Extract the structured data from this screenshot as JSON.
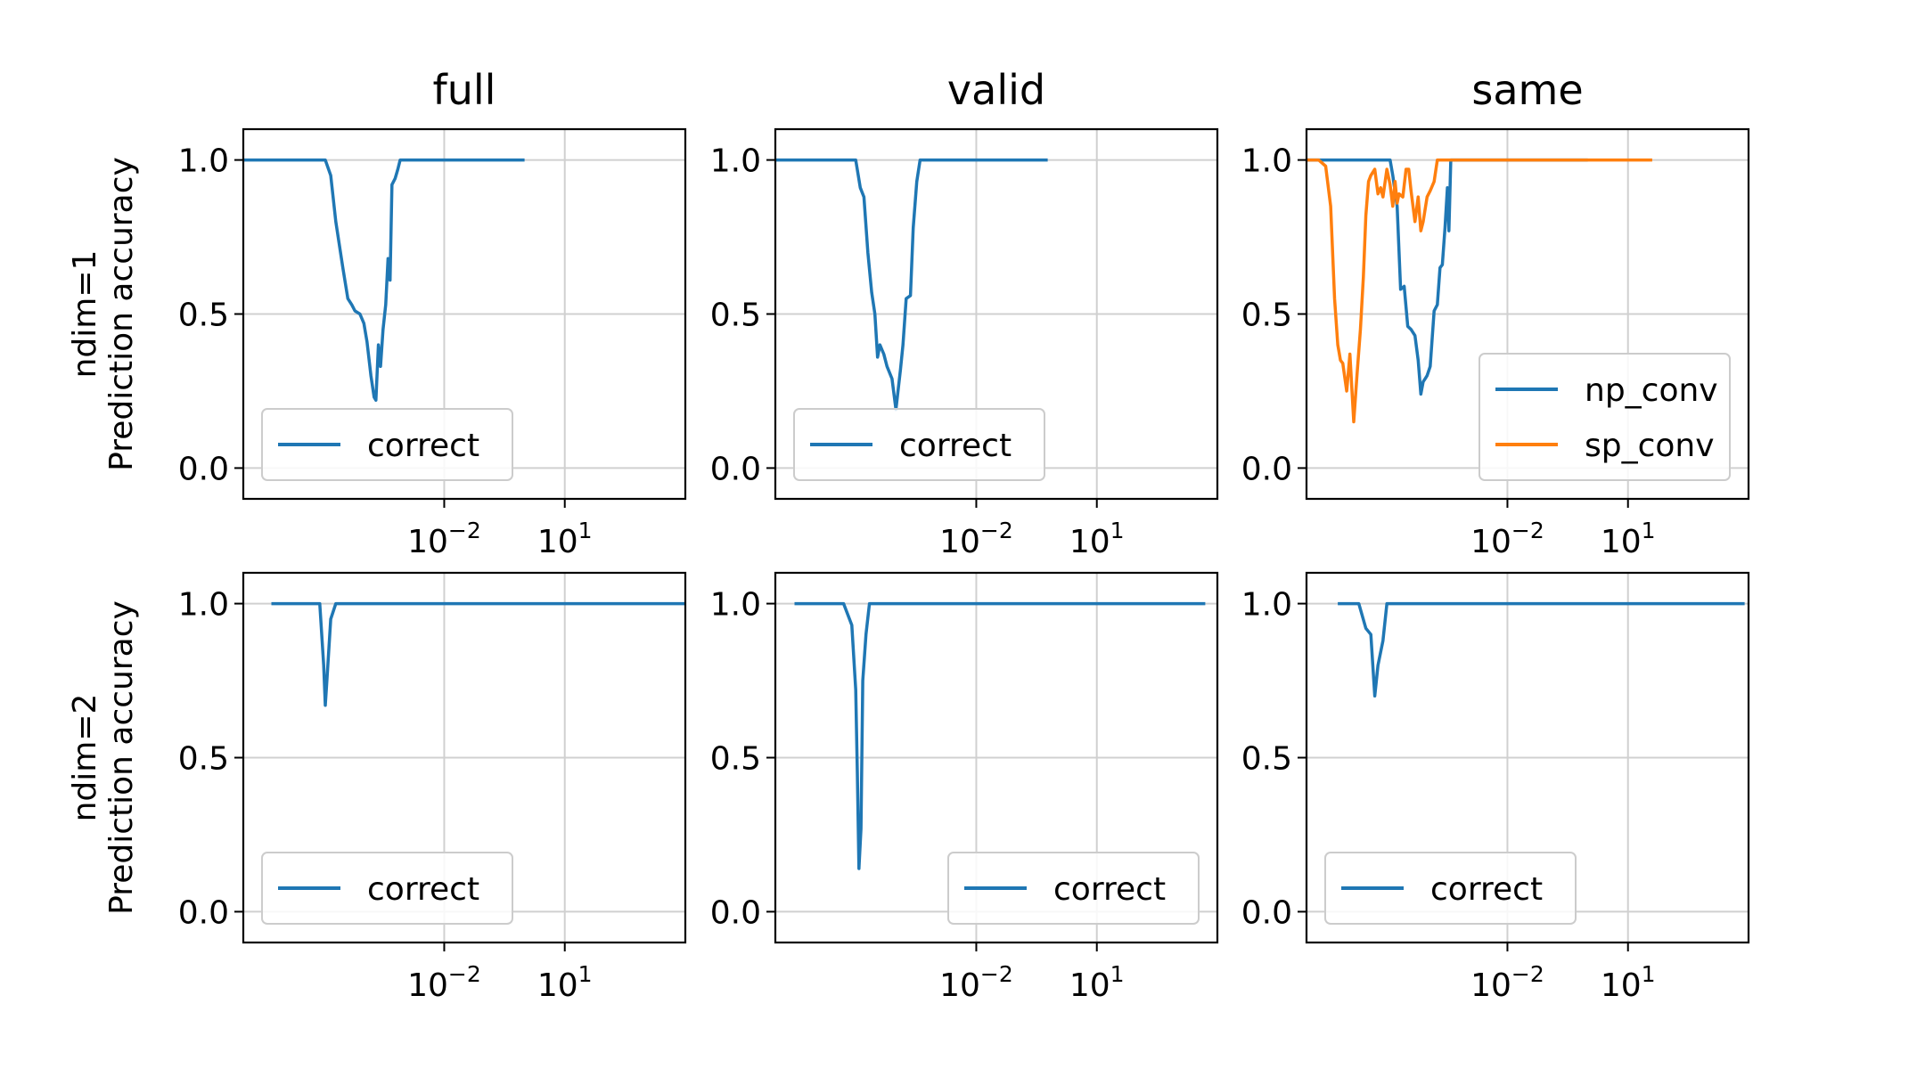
{
  "figure": {
    "column_titles": [
      "full",
      "valid",
      "same"
    ],
    "row_labels": [
      {
        "line1": "ndim=1",
        "line2": "Prediction accuracy"
      },
      {
        "line1": "ndim=2",
        "line2": "Prediction accuracy"
      }
    ]
  },
  "colors": {
    "blue": "#1f77b4",
    "orange": "#ff7f0e",
    "grid": "#d0d0d0"
  },
  "chart_data": [
    {
      "type": "line",
      "row": 0,
      "col": 0,
      "title": "full",
      "ylabel": "ndim=1 / Prediction accuracy",
      "xscale": "log",
      "xlim": [
        1e-07,
        10000.0
      ],
      "ylim": [
        -0.1,
        1.1
      ],
      "xticks": [
        {
          "value": 0.01,
          "base": "10",
          "exp": "−2"
        },
        {
          "value": 10,
          "base": "10",
          "exp": "1"
        }
      ],
      "yticks": [
        {
          "value": 0,
          "label": "0.0"
        },
        {
          "value": 0.5,
          "label": "0.5"
        },
        {
          "value": 1,
          "label": "1.0"
        }
      ],
      "legend": "lower-left",
      "series": [
        {
          "name": "correct",
          "color": "#1f77b4",
          "x": [
            1e-07,
            1e-06,
            1.1e-05,
            1.5e-05,
            2e-05,
            3e-05,
            4e-05,
            5e-05,
            6e-05,
            8e-05,
            0.0001,
            0.00012,
            0.00015,
            0.00018,
            0.0002,
            0.00023,
            0.00026,
            0.0003,
            0.00035,
            0.0004,
            0.00045,
            0.0005,
            0.0006,
            0.0007,
            0.0008,
            0.001,
            0.0012,
            0.0015,
            0.003,
            0.01,
            0.1,
            1
          ],
          "y": [
            1,
            1,
            1,
            0.95,
            0.8,
            0.65,
            0.55,
            0.53,
            0.51,
            0.5,
            0.47,
            0.41,
            0.3,
            0.23,
            0.22,
            0.4,
            0.33,
            0.45,
            0.53,
            0.68,
            0.61,
            0.92,
            0.94,
            0.97,
            1,
            1,
            1,
            1,
            1,
            1,
            1,
            1
          ]
        }
      ]
    },
    {
      "type": "line",
      "row": 0,
      "col": 1,
      "title": "valid",
      "ylabel": "",
      "xscale": "log",
      "xlim": [
        1e-07,
        10000.0
      ],
      "ylim": [
        -0.1,
        1.1
      ],
      "xticks": [
        {
          "value": 0.01,
          "base": "10",
          "exp": "−2"
        },
        {
          "value": 10,
          "base": "10",
          "exp": "1"
        }
      ],
      "yticks": [
        {
          "value": 0,
          "label": "0.0"
        },
        {
          "value": 0.5,
          "label": "0.5"
        },
        {
          "value": 1,
          "label": "1.0"
        }
      ],
      "legend": "lower-left",
      "series": [
        {
          "name": "correct",
          "color": "#1f77b4",
          "x": [
            1e-07,
            1e-06,
            5e-06,
            1e-05,
            1.3e-05,
            1.6e-05,
            2e-05,
            2.5e-05,
            3e-05,
            3.5e-05,
            4e-05,
            5e-05,
            6e-05,
            8e-05,
            0.0001,
            0.00013,
            0.00015,
            0.00018,
            0.00023,
            0.00027,
            0.00033,
            0.0004,
            0.0005,
            0.0006,
            0.0007,
            0.001,
            0.01,
            0.1,
            0.6
          ],
          "y": [
            1,
            1,
            1,
            1,
            0.91,
            0.88,
            0.7,
            0.57,
            0.5,
            0.36,
            0.4,
            0.37,
            0.33,
            0.29,
            0.19,
            0.32,
            0.4,
            0.55,
            0.56,
            0.78,
            0.93,
            1,
            1,
            1,
            1,
            1,
            1,
            1,
            1
          ]
        }
      ]
    },
    {
      "type": "line",
      "row": 0,
      "col": 2,
      "title": "same",
      "ylabel": "",
      "xscale": "log",
      "xlim": [
        1e-07,
        10000.0
      ],
      "ylim": [
        -0.1,
        1.1
      ],
      "xticks": [
        {
          "value": 0.01,
          "base": "10",
          "exp": "−2"
        },
        {
          "value": 10,
          "base": "10",
          "exp": "1"
        }
      ],
      "yticks": [
        {
          "value": 0,
          "label": "0.0"
        },
        {
          "value": 0.5,
          "label": "0.5"
        },
        {
          "value": 1,
          "label": "1.0"
        }
      ],
      "legend": "lower-right",
      "series": [
        {
          "name": "np_conv",
          "color": "#1f77b4",
          "x": [
            1e-07,
            1e-06,
            1e-05,
            1.2e-05,
            1.4e-05,
            1.8e-05,
            2.2e-05,
            2.7e-05,
            3.3e-05,
            4e-05,
            5e-05,
            6e-05,
            7e-05,
            8e-05,
            9e-05,
            0.0001,
            0.00012,
            0.00015,
            0.00018,
            0.00021,
            0.00024,
            0.00028,
            0.00032,
            0.00035,
            0.00039,
            0.00045,
            0.00053,
            0.0006,
            0.001,
            0.01,
            1
          ],
          "y": [
            1,
            1,
            1,
            1,
            0.95,
            0.85,
            0.58,
            0.59,
            0.46,
            0.45,
            0.43,
            0.35,
            0.24,
            0.28,
            0.29,
            0.3,
            0.33,
            0.51,
            0.53,
            0.65,
            0.66,
            0.78,
            0.91,
            0.77,
            1,
            1,
            1,
            1,
            1,
            1,
            1
          ]
        },
        {
          "name": "sp_conv",
          "color": "#ff7f0e",
          "x": [
            1e-07,
            2e-07,
            3e-07,
            4e-07,
            5e-07,
            6e-07,
            7e-07,
            8e-07,
            1e-06,
            1.2e-06,
            1.5e-06,
            1.8e-06,
            2.2e-06,
            2.6e-06,
            3e-06,
            3.5e-06,
            4e-06,
            5e-06,
            6e-06,
            7e-06,
            8e-06,
            1e-05,
            1.2e-05,
            1.4e-05,
            1.6e-05,
            1.8e-05,
            2e-05,
            2.5e-05,
            3e-05,
            3.5e-05,
            4e-05,
            5e-05,
            6e-05,
            7e-05,
            8e-05,
            0.0001,
            0.00012,
            0.00015,
            0.00018,
            0.00022,
            0.00026,
            0.0003,
            0.0005,
            0.001,
            0.01,
            0.1,
            1,
            10,
            40
          ],
          "y": [
            1,
            1,
            0.98,
            0.85,
            0.55,
            0.4,
            0.35,
            0.34,
            0.25,
            0.37,
            0.15,
            0.3,
            0.45,
            0.62,
            0.82,
            0.93,
            0.95,
            0.97,
            0.89,
            0.91,
            0.88,
            0.97,
            0.92,
            0.85,
            0.93,
            0.86,
            0.89,
            0.88,
            0.97,
            0.97,
            0.9,
            0.8,
            0.88,
            0.77,
            0.8,
            0.88,
            0.9,
            0.93,
            1,
            1,
            1,
            1,
            1,
            1,
            1,
            1,
            1,
            1,
            1
          ]
        }
      ]
    },
    {
      "type": "line",
      "row": 1,
      "col": 0,
      "title": "",
      "ylabel": "ndim=2 / Prediction accuracy",
      "xscale": "log",
      "xlim": [
        1e-07,
        10000.0
      ],
      "ylim": [
        -0.1,
        1.1
      ],
      "xticks": [
        {
          "value": 0.01,
          "base": "10",
          "exp": "−2"
        },
        {
          "value": 10,
          "base": "10",
          "exp": "1"
        }
      ],
      "yticks": [
        {
          "value": 0,
          "label": "0.0"
        },
        {
          "value": 0.5,
          "label": "0.5"
        },
        {
          "value": 1,
          "label": "1.0"
        }
      ],
      "legend": "lower-left",
      "series": [
        {
          "name": "correct",
          "color": "#1f77b4",
          "x": [
            5e-07,
            1e-06,
            5e-06,
            8e-06,
            1e-05,
            1.1e-05,
            1.2e-05,
            1.5e-05,
            2e-05,
            0.0001,
            0.001,
            0.01,
            0.1,
            1,
            10,
            100,
            1000,
            10000.0
          ],
          "y": [
            1,
            1,
            1,
            1,
            0.8,
            0.67,
            0.75,
            0.95,
            1,
            1,
            1,
            1,
            1,
            1,
            1,
            1,
            1,
            1
          ]
        }
      ]
    },
    {
      "type": "line",
      "row": 1,
      "col": 1,
      "title": "",
      "ylabel": "",
      "xscale": "log",
      "xlim": [
        1e-07,
        10000.0
      ],
      "ylim": [
        -0.1,
        1.1
      ],
      "xticks": [
        {
          "value": 0.01,
          "base": "10",
          "exp": "−2"
        },
        {
          "value": 10,
          "base": "10",
          "exp": "1"
        }
      ],
      "yticks": [
        {
          "value": 0,
          "label": "0.0"
        },
        {
          "value": 0.5,
          "label": "0.5"
        },
        {
          "value": 1,
          "label": "1.0"
        }
      ],
      "legend": "lower-right",
      "series": [
        {
          "name": "correct",
          "color": "#1f77b4",
          "x": [
            3e-07,
            1e-06,
            5e-06,
            8e-06,
            1e-05,
            1.1e-05,
            1.2e-05,
            1.35e-05,
            1.5e-05,
            1.8e-05,
            2.2e-05,
            2.8e-05,
            3.5e-05,
            0.0001,
            0.001,
            0.01,
            0.1,
            1,
            10,
            100,
            1000,
            5000
          ],
          "y": [
            1,
            1,
            1,
            0.93,
            0.72,
            0.45,
            0.14,
            0.27,
            0.75,
            0.9,
            1,
            1,
            1,
            1,
            1,
            1,
            1,
            1,
            1,
            1,
            1,
            1
          ]
        }
      ]
    },
    {
      "type": "line",
      "row": 1,
      "col": 2,
      "title": "",
      "ylabel": "",
      "xscale": "log",
      "xlim": [
        1e-07,
        10000.0
      ],
      "ylim": [
        -0.1,
        1.1
      ],
      "xticks": [
        {
          "value": 0.01,
          "base": "10",
          "exp": "−2"
        },
        {
          "value": 10,
          "base": "10",
          "exp": "1"
        }
      ],
      "yticks": [
        {
          "value": 0,
          "label": "0.0"
        },
        {
          "value": 0.5,
          "label": "0.5"
        },
        {
          "value": 1,
          "label": "1.0"
        }
      ],
      "legend": "lower-left",
      "series": [
        {
          "name": "correct",
          "color": "#1f77b4",
          "x": [
            6e-07,
            1e-06,
            2e-06,
            3e-06,
            4e-06,
            5e-06,
            6e-06,
            8e-06,
            1e-05,
            1.2e-05,
            1.5e-05,
            0.0001,
            0.001,
            0.01,
            0.1,
            1,
            10,
            100,
            1000,
            8000
          ],
          "y": [
            1,
            1,
            1,
            0.92,
            0.9,
            0.7,
            0.8,
            0.88,
            1,
            1,
            1,
            1,
            1,
            1,
            1,
            1,
            1,
            1,
            1,
            1
          ]
        }
      ]
    }
  ]
}
